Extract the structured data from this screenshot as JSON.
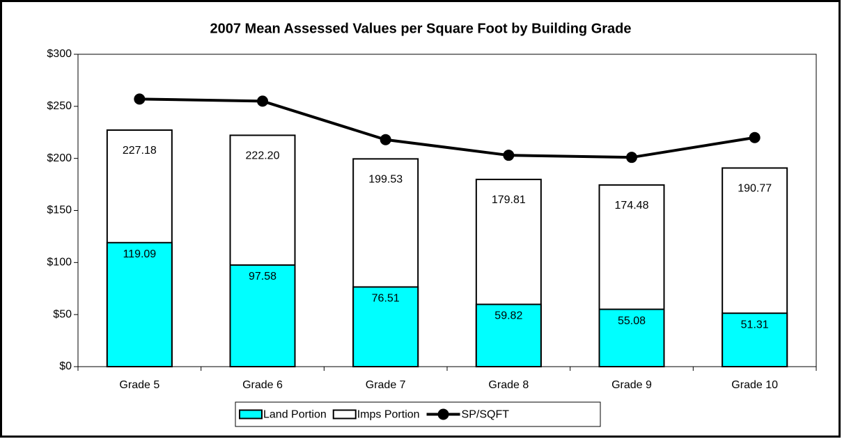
{
  "chart_data": {
    "type": "bar-line",
    "title": "2007 Mean Assessed Values per Square Foot by Building Grade",
    "categories": [
      "Grade 5",
      "Grade 6",
      "Grade 7",
      "Grade 8",
      "Grade 9",
      "Grade 10"
    ],
    "series": [
      {
        "name": "Imps Portion",
        "type": "bar",
        "color": "#ffffff",
        "values": [
          227.18,
          222.2,
          199.53,
          179.81,
          174.48,
          190.77
        ],
        "value_labels": [
          "227.18",
          "222.20",
          "199.53",
          "179.81",
          "174.48",
          "190.77"
        ]
      },
      {
        "name": "Land Portion",
        "type": "bar",
        "color": "#00ffff",
        "values": [
          119.09,
          97.58,
          76.51,
          59.82,
          55.08,
          51.31
        ],
        "value_labels": [
          "119.09",
          "97.58",
          "76.51",
          "59.82",
          "55.08",
          "51.31"
        ]
      },
      {
        "name": "SP/SQFT",
        "type": "line",
        "color": "#000000",
        "values": [
          257,
          255,
          218,
          203,
          201,
          220
        ]
      }
    ],
    "legend_order": [
      1,
      0,
      2
    ],
    "ylim": [
      0,
      300
    ],
    "yticks": [
      {
        "value": 0,
        "label": "$0"
      },
      {
        "value": 50,
        "label": "$50"
      },
      {
        "value": 100,
        "label": "$100"
      },
      {
        "value": 150,
        "label": "$150"
      },
      {
        "value": 200,
        "label": "$200"
      },
      {
        "value": 250,
        "label": "$250"
      },
      {
        "value": 300,
        "label": "$300"
      }
    ],
    "legend": "bottom"
  }
}
